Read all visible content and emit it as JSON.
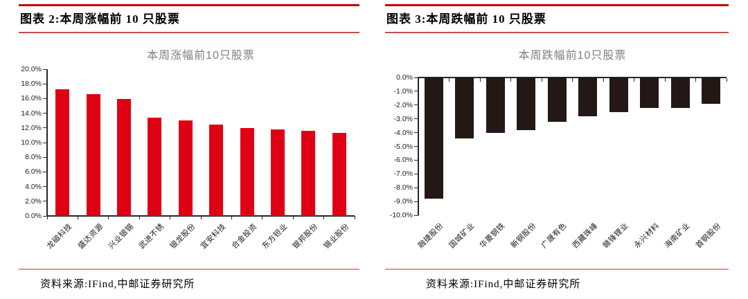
{
  "panels": [
    {
      "caption": "图表 2:本周涨幅前 10 只股票",
      "source": "资料来源:IFind,中邮证券研究所"
    },
    {
      "caption": "图表 3:本周跌幅前 10 只股票",
      "source": "资料来源:IFind,中邮证券研究所"
    }
  ],
  "colors": {
    "caption_rule_top": "#c00000",
    "caption_rule_bottom": "#c0504d",
    "footer_rule": "#d99694",
    "gain_bar": "#e00014",
    "loss_bar": "#231815",
    "axis": "#262626",
    "chart_title": "#7f7f7f"
  },
  "chart_data": [
    {
      "type": "bar",
      "title": "本周涨幅前10只股票",
      "categories": [
        "龙磁科技",
        "盛达资源",
        "兴业银锡",
        "武进不锈",
        "银龙股份",
        "宜安科技",
        "合金投资",
        "东方钽业",
        "银邦股份",
        "锡业股份"
      ],
      "values": [
        17.3,
        16.6,
        15.9,
        13.4,
        13.0,
        12.5,
        12.0,
        11.8,
        11.6,
        11.3
      ],
      "unit": "%",
      "ylim": [
        0,
        20
      ],
      "yticks": [
        20,
        18,
        16,
        14,
        12,
        10,
        8,
        6,
        4,
        2,
        0
      ],
      "ytick_labels": [
        "20.0%",
        "18.0%",
        "16.0%",
        "14.0%",
        "12.0%",
        "10.0%",
        "8.0%",
        "6.0%",
        "4.0%",
        "2.0%",
        "0.0%"
      ],
      "bar_color": "#e00014",
      "grid": false,
      "legend": false,
      "xlabel": "",
      "ylabel": ""
    },
    {
      "type": "bar",
      "title": "本周跌幅前10只股票",
      "categories": [
        "融捷股份",
        "国城矿业",
        "华菱钢铁",
        "新钢股份",
        "广晟有色",
        "西藏珠峰",
        "赣锋锂业",
        "永兴材料",
        "海南矿业",
        "首钢股份"
      ],
      "values": [
        -8.8,
        -4.4,
        -4.0,
        -3.8,
        -3.2,
        -2.8,
        -2.5,
        -2.2,
        -2.2,
        -1.9
      ],
      "unit": "%",
      "ylim": [
        -10,
        0
      ],
      "yticks": [
        0,
        -1,
        -2,
        -3,
        -4,
        -5,
        -6,
        -7,
        -8,
        -9,
        -10
      ],
      "ytick_labels": [
        "0.0%",
        "-1.0%",
        "-2.0%",
        "-3.0%",
        "-4.0%",
        "-5.0%",
        "-6.0%",
        "-7.0%",
        "-8.0%",
        "-9.0%",
        "-10.0%"
      ],
      "bar_color": "#231815",
      "grid": false,
      "legend": false,
      "xlabel": "",
      "ylabel": ""
    }
  ]
}
